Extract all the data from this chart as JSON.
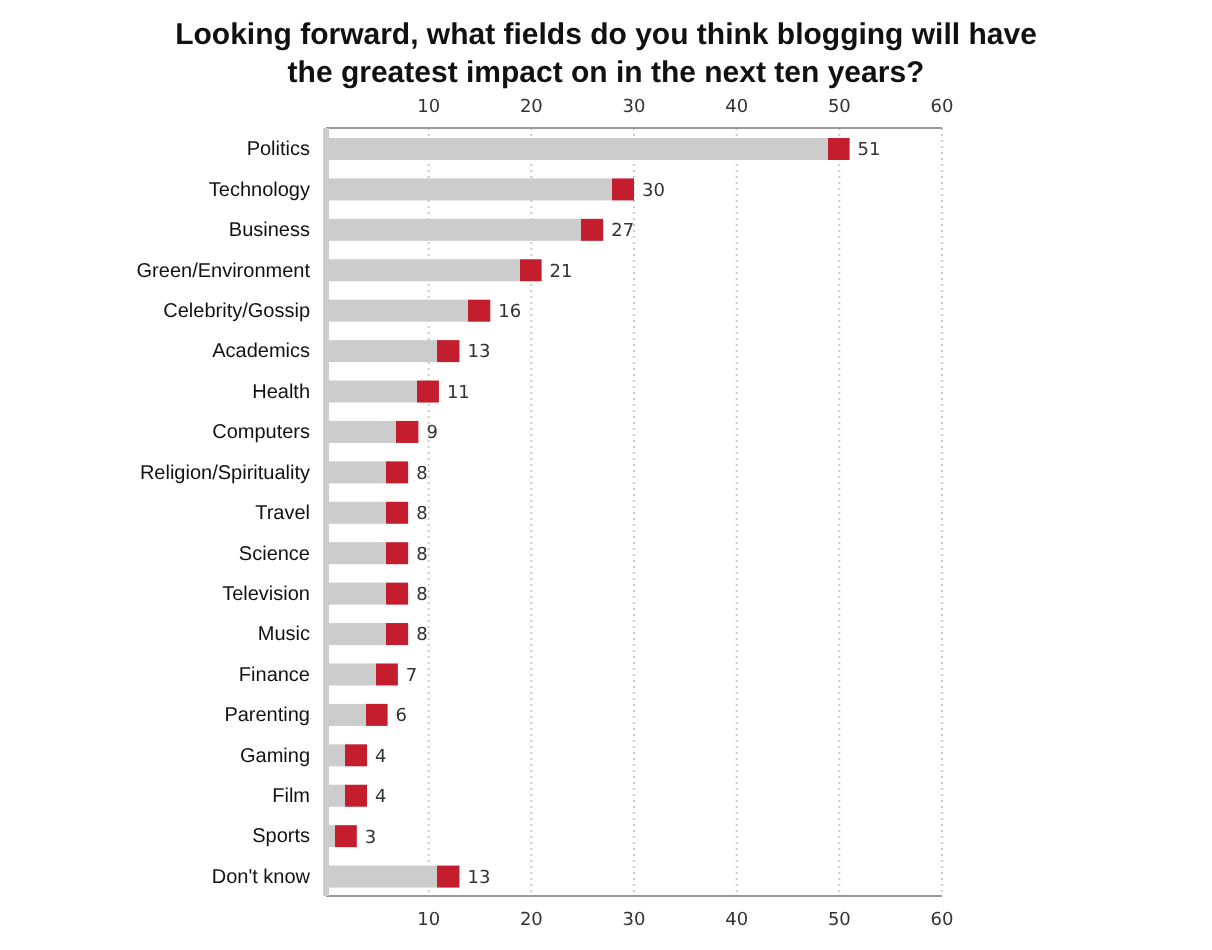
{
  "chart_data": {
    "type": "bar",
    "orientation": "horizontal",
    "title": "Looking forward, what fields do you think blogging will have the greatest impact on in the next ten years?",
    "categories": [
      "Politics",
      "Technology",
      "Business",
      "Green/Environment",
      "Celebrity/Gossip",
      "Academics",
      "Health",
      "Computers",
      "Religion/Spirituality",
      "Travel",
      "Science",
      "Television",
      "Music",
      "Finance",
      "Parenting",
      "Gaming",
      "Film",
      "Sports",
      "Don't know"
    ],
    "values": [
      51,
      30,
      27,
      21,
      16,
      13,
      11,
      9,
      8,
      8,
      8,
      8,
      8,
      7,
      6,
      4,
      4,
      3,
      13
    ],
    "color": "#cccccc",
    "data_labels": true,
    "grid": "x",
    "xlim": [
      0,
      60
    ],
    "xticks": [
      10,
      20,
      30,
      40,
      50,
      60
    ],
    "x2lim": [
      0,
      60
    ],
    "x2ticks": [
      10,
      20,
      30,
      40,
      50,
      60
    ]
  }
}
